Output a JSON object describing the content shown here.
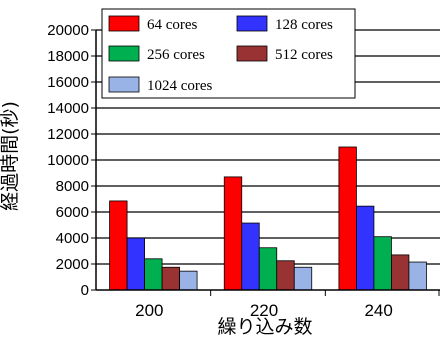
{
  "chart_data": {
    "type": "bar",
    "xlabel": "繰り込み数",
    "ylabel": "経過時間(秒)",
    "categories": [
      "200",
      "220",
      "240"
    ],
    "ylim": [
      0,
      20000
    ],
    "yticks": [
      0,
      2000,
      4000,
      6000,
      8000,
      10000,
      12000,
      14000,
      16000,
      18000,
      20000
    ],
    "grid": true,
    "legend_position": "top",
    "series": [
      {
        "name": "64 cores",
        "color": "#ff0000",
        "values": [
          6850,
          8700,
          11000
        ]
      },
      {
        "name": "128 cores",
        "color": "#3333ff",
        "values": [
          4000,
          5150,
          6450
        ]
      },
      {
        "name": "256 cores",
        "color": "#00b050",
        "values": [
          2400,
          3250,
          4100
        ]
      },
      {
        "name": "512 cores",
        "color": "#993333",
        "values": [
          1750,
          2250,
          2700
        ]
      },
      {
        "name": "1024 cores",
        "color": "#99b3e6",
        "values": [
          1450,
          1750,
          2150
        ]
      }
    ]
  }
}
